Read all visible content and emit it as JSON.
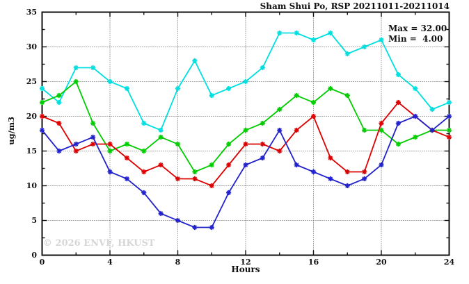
{
  "watermark": "© 2026 ENVF, HKUST",
  "chart_data": {
    "type": "line",
    "title": "Sham Shui Po, RSP 20211011-20211014",
    "xlabel": "Hours",
    "ylabel": "ug/m3",
    "annotations": [
      "Max = 32.00",
      "Min =  4.00"
    ],
    "stats": {
      "max": 32.0,
      "min": 4.0
    },
    "xlim": [
      0,
      24
    ],
    "ylim": [
      0,
      35
    ],
    "legend": "none",
    "grid": "dotted",
    "grid_x": [
      4,
      8,
      12,
      16,
      20
    ],
    "grid_y": [
      5,
      10,
      15,
      20,
      25,
      30
    ],
    "x_ticks": {
      "major": [
        0,
        4,
        8,
        12,
        16,
        20,
        24
      ],
      "minor": [
        2,
        6,
        10,
        14,
        18,
        22
      ]
    },
    "y_ticks": {
      "major": [
        0,
        5,
        10,
        15,
        20,
        25,
        30,
        35
      ],
      "minor": [
        2.5,
        7.5,
        12.5,
        17.5,
        22.5,
        27.5,
        32.5
      ]
    },
    "x": [
      0,
      1,
      2,
      3,
      4,
      5,
      6,
      7,
      8,
      9,
      10,
      11,
      12,
      13,
      14,
      15,
      16,
      17,
      18,
      19,
      20,
      21,
      22,
      23,
      24
    ],
    "series": [
      {
        "name": "series-cyan",
        "color": "#00dfdf",
        "values": [
          24,
          22,
          27,
          27,
          25,
          24,
          19,
          18,
          24,
          28,
          23,
          24,
          25,
          27,
          32,
          32,
          31,
          32,
          29,
          30,
          31,
          26,
          24,
          21,
          22
        ]
      },
      {
        "name": "series-green",
        "color": "#00cc00",
        "values": [
          22,
          23,
          25,
          19,
          15,
          16,
          15,
          17,
          16,
          12,
          13,
          16,
          18,
          19,
          21,
          23,
          22,
          24,
          23,
          18,
          18,
          16,
          17,
          18,
          18
        ]
      },
      {
        "name": "series-red",
        "color": "#dd0000",
        "values": [
          20,
          19,
          15,
          16,
          16,
          14,
          12,
          13,
          11,
          11,
          10,
          13,
          16,
          16,
          15,
          18,
          20,
          14,
          12,
          12,
          19,
          22,
          20,
          18,
          17
        ]
      },
      {
        "name": "series-blue",
        "color": "#2222cc",
        "values": [
          18,
          15,
          16,
          17,
          12,
          11,
          9,
          6,
          5,
          4,
          4,
          9,
          13,
          14,
          18,
          13,
          12,
          11,
          10,
          11,
          13,
          19,
          20,
          18,
          20
        ]
      }
    ]
  }
}
